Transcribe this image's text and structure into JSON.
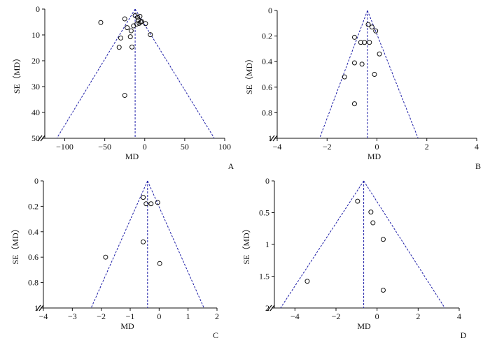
{
  "chart_data": [
    {
      "type": "scatter",
      "panel_label": "A",
      "xlabel": "MD",
      "ylabel": "SE（MD）",
      "xlim": [
        -125,
        100
      ],
      "ylim": [
        0,
        50
      ],
      "y_inverted": true,
      "xticks": [
        -100,
        -50,
        0,
        50,
        100
      ],
      "yticks": [
        0,
        10,
        20,
        30,
        40,
        50
      ],
      "x_axis_break": true,
      "pooled_md": -12,
      "funnel_bottom_se": 50,
      "funnel_bottom_x": [
        -110,
        87
      ],
      "line_color": "#1f1fa8",
      "points": [
        {
          "x": -55,
          "y": 5.2
        },
        {
          "x": -25,
          "y": 3.8
        },
        {
          "x": -12,
          "y": 2.5
        },
        {
          "x": -9,
          "y": 3.2
        },
        {
          "x": -6,
          "y": 2.8
        },
        {
          "x": -8,
          "y": 4.3
        },
        {
          "x": -5,
          "y": 5.0
        },
        {
          "x": -10,
          "y": 5.8
        },
        {
          "x": -14,
          "y": 6.5
        },
        {
          "x": -4,
          "y": 4.8
        },
        {
          "x": 1,
          "y": 5.6
        },
        {
          "x": -22,
          "y": 7.2
        },
        {
          "x": -17,
          "y": 8.4
        },
        {
          "x": -30,
          "y": 11.2
        },
        {
          "x": -18,
          "y": 10.7
        },
        {
          "x": 7,
          "y": 9.9
        },
        {
          "x": -32,
          "y": 14.8
        },
        {
          "x": -16,
          "y": 14.7
        },
        {
          "x": -25,
          "y": 33.4
        },
        {
          "x": -7,
          "y": 5.5
        }
      ]
    },
    {
      "type": "scatter",
      "panel_label": "B",
      "xlabel": "MD",
      "ylabel": "SE（MD）",
      "xlim": [
        -4,
        4
      ],
      "ylim": [
        0,
        1.0
      ],
      "y_inverted": true,
      "xticks": [
        -4,
        -2,
        0,
        2,
        4
      ],
      "yticks": [
        0,
        0.2,
        0.4,
        0.6,
        0.8,
        1.0
      ],
      "x_axis_break": true,
      "pooled_md": -0.38,
      "funnel_bottom_se": 1.0,
      "funnel_bottom_x": [
        -2.3,
        1.65
      ],
      "line_color": "#1f1fa8",
      "points": [
        {
          "x": -0.35,
          "y": 0.11
        },
        {
          "x": -0.2,
          "y": 0.13
        },
        {
          "x": -0.05,
          "y": 0.16
        },
        {
          "x": -0.9,
          "y": 0.21
        },
        {
          "x": -0.65,
          "y": 0.25
        },
        {
          "x": -0.5,
          "y": 0.25
        },
        {
          "x": -0.3,
          "y": 0.25
        },
        {
          "x": 0.1,
          "y": 0.34
        },
        {
          "x": -0.9,
          "y": 0.41
        },
        {
          "x": -0.6,
          "y": 0.42
        },
        {
          "x": -0.1,
          "y": 0.5
        },
        {
          "x": -1.3,
          "y": 0.52
        },
        {
          "x": -0.9,
          "y": 0.73
        }
      ]
    },
    {
      "type": "scatter",
      "panel_label": "C",
      "xlabel": "MD",
      "ylabel": "SE（MD）",
      "xlim": [
        -4,
        2
      ],
      "ylim": [
        0,
        1.0
      ],
      "y_inverted": true,
      "xticks": [
        -4,
        -3,
        -2,
        -1,
        0,
        1,
        2
      ],
      "yticks": [
        0,
        0.2,
        0.4,
        0.6,
        0.8,
        1.0
      ],
      "x_axis_break": true,
      "pooled_md": -0.4,
      "funnel_bottom_se": 1.0,
      "funnel_bottom_x": [
        -2.35,
        1.55
      ],
      "line_color": "#1f1fa8",
      "points": [
        {
          "x": -0.55,
          "y": 0.13
        },
        {
          "x": -0.45,
          "y": 0.18
        },
        {
          "x": -0.28,
          "y": 0.18
        },
        {
          "x": -0.05,
          "y": 0.17
        },
        {
          "x": -0.55,
          "y": 0.48
        },
        {
          "x": -1.85,
          "y": 0.6
        },
        {
          "x": 0.02,
          "y": 0.65
        }
      ]
    },
    {
      "type": "scatter",
      "panel_label": "D",
      "xlabel": "MD",
      "ylabel": "SE（MD）",
      "xlim": [
        -5,
        4
      ],
      "ylim": [
        0,
        2.0
      ],
      "y_inverted": true,
      "xticks": [
        -4,
        -2,
        0,
        2,
        4
      ],
      "yticks": [
        0,
        0.5,
        1.0,
        1.5,
        2.0
      ],
      "x_axis_break": true,
      "pooled_md": -0.65,
      "funnel_bottom_se": 2.0,
      "funnel_bottom_x": [
        -4.7,
        3.3
      ],
      "line_color": "#1f1fa8",
      "points": [
        {
          "x": -0.95,
          "y": 0.32
        },
        {
          "x": -0.3,
          "y": 0.49
        },
        {
          "x": -0.2,
          "y": 0.66
        },
        {
          "x": 0.3,
          "y": 0.92
        },
        {
          "x": -3.4,
          "y": 1.58
        },
        {
          "x": 0.3,
          "y": 1.72
        }
      ]
    }
  ]
}
